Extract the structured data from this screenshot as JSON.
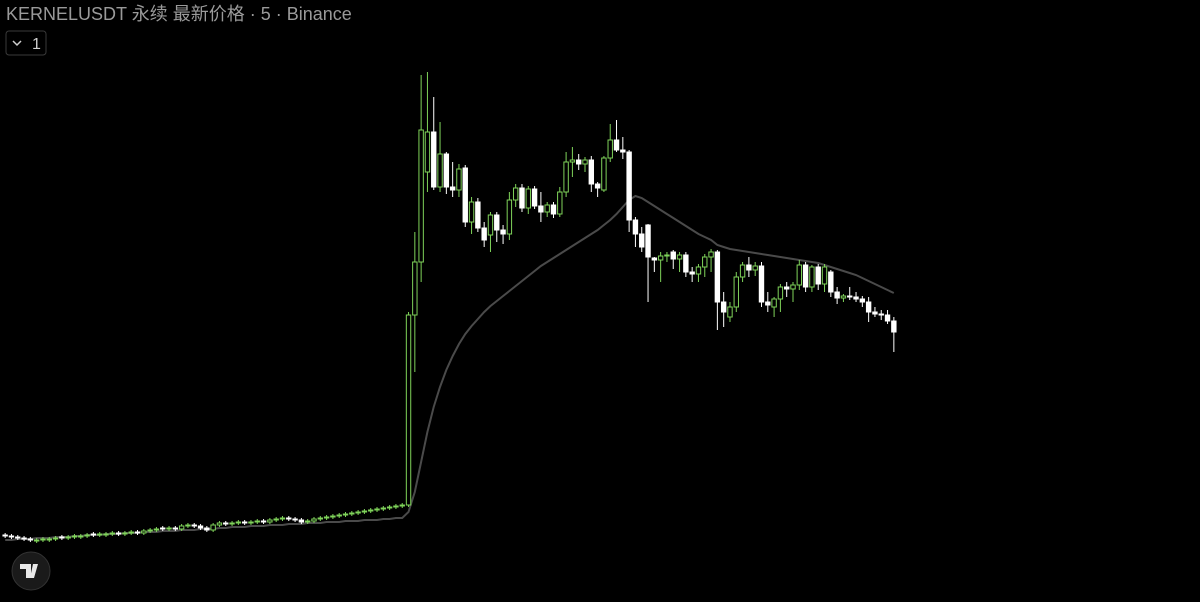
{
  "chart_data": {
    "type": "candlestick",
    "title": "KERNELUSDT 永续 最新价格 · 5 · Binance",
    "pane_button": "1",
    "up_color": "#7fd35a",
    "down_color": "#ffffff",
    "ylim": [
      0,
      602
    ],
    "open": [
      67,
      66,
      65,
      64,
      63,
      61,
      62,
      62,
      63,
      65,
      64,
      65,
      65,
      66,
      68,
      67,
      67,
      68,
      69,
      68,
      69,
      70,
      69,
      71,
      72,
      74,
      73,
      74,
      73,
      76,
      77,
      76,
      74,
      72,
      77,
      79,
      78,
      79,
      80,
      79,
      80,
      81,
      80,
      82,
      83,
      84,
      83,
      82,
      80,
      81,
      83,
      84,
      85,
      86,
      87,
      88,
      89,
      90,
      91,
      92,
      93,
      94,
      95,
      96,
      97,
      287,
      340,
      430,
      470,
      415,
      448,
      415,
      412,
      434,
      380,
      400,
      374,
      367,
      387,
      372,
      368,
      402,
      414,
      394,
      413,
      396,
      390,
      397,
      388,
      410,
      440,
      442,
      438,
      442,
      418,
      412,
      444,
      462,
      452,
      450,
      382,
      368,
      377,
      344,
      342,
      346,
      350,
      343,
      347,
      330,
      328,
      335,
      345,
      350,
      300,
      285,
      295,
      325,
      337,
      332,
      336,
      300,
      295,
      303,
      315,
      313,
      317,
      337,
      315,
      335,
      318,
      330,
      310,
      304,
      306,
      305,
      303,
      300,
      290,
      288,
      287,
      281
    ],
    "high": [
      69,
      68,
      67,
      66,
      65,
      64,
      65,
      65,
      66,
      67,
      67,
      68,
      68,
      69,
      70,
      70,
      70,
      71,
      71,
      71,
      72,
      72,
      73,
      74,
      75,
      76,
      76,
      76,
      78,
      79,
      79,
      78,
      76,
      79,
      81,
      81,
      81,
      82,
      82,
      82,
      83,
      83,
      84,
      85,
      86,
      86,
      85,
      84,
      83,
      85,
      86,
      87,
      88,
      89,
      90,
      91,
      92,
      93,
      94,
      95,
      96,
      97,
      98,
      99,
      290,
      370,
      527,
      530,
      505,
      480,
      450,
      440,
      438,
      437,
      405,
      404,
      380,
      390,
      390,
      377,
      410,
      418,
      418,
      416,
      416,
      410,
      400,
      400,
      415,
      450,
      455,
      448,
      445,
      446,
      420,
      446,
      478,
      482,
      465,
      452,
      385,
      375,
      378,
      345,
      350,
      350,
      352,
      350,
      350,
      335,
      338,
      348,
      353,
      352,
      310,
      300,
      330,
      340,
      345,
      340,
      340,
      310,
      305,
      318,
      320,
      320,
      342,
      340,
      337,
      338,
      338,
      332,
      315,
      308,
      315,
      310,
      306,
      305,
      295,
      292,
      292,
      285
    ],
    "low": [
      64,
      63,
      62,
      61,
      60,
      59,
      60,
      60,
      61,
      62,
      62,
      63,
      63,
      64,
      65,
      65,
      65,
      66,
      66,
      66,
      67,
      67,
      67,
      69,
      70,
      71,
      71,
      71,
      71,
      74,
      74,
      72,
      70,
      70,
      75,
      76,
      76,
      77,
      77,
      77,
      78,
      78,
      78,
      80,
      81,
      81,
      80,
      78,
      78,
      79,
      81,
      82,
      83,
      84,
      85,
      86,
      87,
      88,
      89,
      90,
      91,
      92,
      93,
      94,
      95,
      230,
      320,
      410,
      412,
      410,
      408,
      405,
      405,
      375,
      368,
      370,
      355,
      350,
      360,
      358,
      362,
      395,
      390,
      388,
      393,
      380,
      385,
      384,
      385,
      405,
      425,
      432,
      430,
      410,
      405,
      410,
      440,
      450,
      443,
      370,
      355,
      350,
      300,
      330,
      320,
      340,
      333,
      330,
      325,
      320,
      320,
      325,
      330,
      272,
      275,
      280,
      290,
      320,
      325,
      326,
      295,
      290,
      285,
      290,
      305,
      300,
      312,
      310,
      310,
      312,
      310,
      305,
      298,
      300,
      302,
      300,
      295,
      280,
      285,
      282,
      278,
      250
    ],
    "close": [
      66,
      65,
      64,
      63,
      62,
      62,
      63,
      63,
      64,
      64,
      65,
      66,
      66,
      67,
      67,
      68,
      68,
      69,
      68,
      69,
      70,
      69,
      71,
      72,
      73,
      73,
      74,
      73,
      76,
      77,
      76,
      74,
      72,
      77,
      79,
      78,
      79,
      80,
      79,
      80,
      81,
      80,
      82,
      83,
      84,
      83,
      82,
      80,
      81,
      83,
      84,
      85,
      86,
      87,
      88,
      89,
      90,
      91,
      92,
      93,
      94,
      95,
      96,
      97,
      287,
      340,
      472,
      470,
      415,
      448,
      415,
      412,
      433,
      380,
      400,
      374,
      362,
      387,
      372,
      368,
      402,
      414,
      394,
      413,
      396,
      390,
      397,
      388,
      410,
      440,
      442,
      438,
      442,
      418,
      414,
      444,
      462,
      452,
      450,
      382,
      368,
      355,
      345,
      342,
      346,
      347,
      343,
      347,
      330,
      328,
      335,
      345,
      350,
      300,
      290,
      295,
      325,
      337,
      332,
      336,
      300,
      297,
      303,
      315,
      313,
      317,
      337,
      315,
      335,
      318,
      335,
      310,
      304,
      306,
      305,
      303,
      300,
      290,
      288,
      287,
      281,
      270
    ],
    "series": [
      {
        "color": "#4a4a4a",
        "values": [
          62,
          62,
          63,
          63,
          63,
          64,
          64,
          64,
          65,
          65,
          65,
          66,
          66,
          67,
          67,
          67,
          68,
          68,
          68,
          69,
          69,
          69,
          70,
          70,
          70,
          71,
          71,
          71,
          72,
          72,
          72,
          73,
          73,
          73,
          74,
          74,
          75,
          75,
          75,
          76,
          76,
          76,
          77,
          77,
          77,
          78,
          78,
          78,
          79,
          79,
          79,
          80,
          80,
          80,
          81,
          81,
          81,
          82,
          82,
          82,
          83,
          83,
          84,
          84,
          90,
          110,
          140,
          170,
          195,
          215,
          232,
          246,
          258,
          268,
          276,
          283,
          290,
          296,
          301,
          306,
          311,
          316,
          321,
          326,
          331,
          336,
          340,
          344,
          348,
          352,
          356,
          360,
          364,
          368,
          372,
          377,
          382,
          388,
          395,
          402,
          406,
          404,
          400,
          396,
          392,
          388,
          384,
          380,
          376,
          372,
          368,
          365,
          362,
          357,
          355,
          353,
          352,
          351,
          350,
          349,
          348,
          347,
          346,
          345,
          344,
          343,
          342,
          341,
          340,
          339,
          337,
          335,
          333,
          331,
          329,
          327,
          324,
          321,
          318,
          315,
          312,
          309
        ]
      }
    ]
  }
}
